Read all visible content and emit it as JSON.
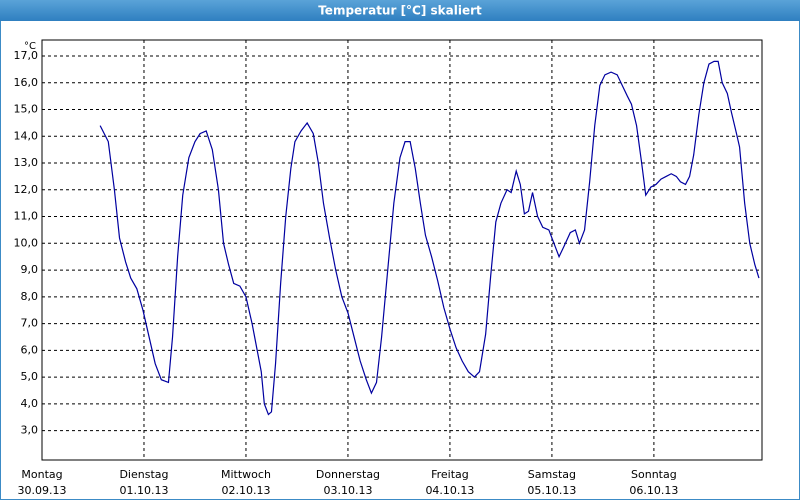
{
  "chart_data": {
    "type": "line",
    "title": "Temperatur [°C] skaliert",
    "y_unit": "°C",
    "x": [
      0.57,
      0.65,
      0.71,
      0.76,
      0.82,
      0.87,
      0.93,
      0.99,
      1.05,
      1.11,
      1.17,
      1.24,
      1.28,
      1.33,
      1.38,
      1.44,
      1.5,
      1.55,
      1.61,
      1.67,
      1.73,
      1.78,
      1.83,
      1.88,
      1.94,
      2.0,
      2.06,
      2.12,
      2.15,
      2.18,
      2.22,
      2.25,
      2.29,
      2.34,
      2.39,
      2.44,
      2.48,
      2.54,
      2.6,
      2.66,
      2.71,
      2.76,
      2.82,
      2.88,
      2.94,
      3.0,
      3.06,
      3.12,
      3.18,
      3.23,
      3.28,
      3.33,
      3.39,
      3.45,
      3.51,
      3.56,
      3.61,
      3.66,
      3.71,
      3.76,
      3.82,
      3.88,
      3.94,
      4.0,
      4.06,
      4.12,
      4.18,
      4.24,
      4.29,
      4.35,
      4.4,
      4.45,
      4.5,
      4.56,
      4.6,
      4.65,
      4.69,
      4.73,
      4.77,
      4.81,
      4.86,
      4.91,
      4.97,
      5.02,
      5.07,
      5.12,
      5.18,
      5.23,
      5.27,
      5.32,
      5.37,
      5.42,
      5.47,
      5.52,
      5.58,
      5.64,
      5.69,
      5.74,
      5.78,
      5.83,
      5.88,
      5.92,
      5.97,
      6.02,
      6.07,
      6.12,
      6.17,
      6.22,
      6.26,
      6.31,
      6.35,
      6.39,
      6.44,
      6.49,
      6.54,
      6.59,
      6.63,
      6.67,
      6.72,
      6.76,
      6.81,
      6.84,
      6.89,
      6.94,
      6.99,
      7.03
    ],
    "series": [
      {
        "name": "Temperatur",
        "color": "#0000a0",
        "values": [
          14.4,
          13.8,
          12.0,
          10.2,
          9.3,
          8.7,
          8.3,
          7.5,
          6.5,
          5.5,
          4.9,
          4.8,
          6.5,
          9.5,
          11.8,
          13.2,
          13.8,
          14.1,
          14.2,
          13.5,
          12.0,
          10.0,
          9.2,
          8.5,
          8.4,
          8.0,
          7.0,
          5.8,
          5.2,
          4.0,
          3.6,
          3.7,
          5.5,
          8.5,
          11.0,
          12.8,
          13.8,
          14.2,
          14.5,
          14.1,
          13.0,
          11.5,
          10.2,
          9.0,
          8.0,
          7.4,
          6.5,
          5.6,
          4.9,
          4.4,
          4.8,
          6.5,
          9.0,
          11.5,
          13.2,
          13.8,
          13.8,
          12.8,
          11.5,
          10.3,
          9.5,
          8.6,
          7.6,
          6.8,
          6.1,
          5.6,
          5.2,
          5.0,
          5.2,
          6.6,
          8.8,
          10.8,
          11.5,
          12.0,
          11.9,
          12.7,
          12.2,
          11.1,
          11.2,
          11.9,
          11.0,
          10.6,
          10.5,
          10.0,
          9.5,
          9.9,
          10.4,
          10.5,
          10.0,
          10.5,
          12.3,
          14.4,
          15.9,
          16.3,
          16.4,
          16.3,
          15.9,
          15.5,
          15.2,
          14.4,
          13.0,
          11.8,
          12.1,
          12.2,
          12.4,
          12.5,
          12.6,
          12.5,
          12.3,
          12.2,
          12.5,
          13.3,
          14.8,
          16.0,
          16.7,
          16.8,
          16.8,
          16.0,
          15.6,
          14.9,
          14.1,
          13.6,
          11.5,
          10.0,
          9.2,
          8.7
        ]
      }
    ],
    "xlim": [
      0,
      7.06
    ],
    "xticks": [
      {
        "value": 0,
        "label": "Montag"
      },
      {
        "value": 1,
        "label": "Dienstag"
      },
      {
        "value": 2,
        "label": "Mittwoch"
      },
      {
        "value": 3,
        "label": "Donnerstag"
      },
      {
        "value": 4,
        "label": "Freitag"
      },
      {
        "value": 5,
        "label": "Samstag"
      },
      {
        "value": 6,
        "label": "Sonntag"
      }
    ],
    "xtick_dates": [
      "30.09.13",
      "01.10.13",
      "02.10.13",
      "03.10.13",
      "04.10.13",
      "05.10.13",
      "06.10.13"
    ],
    "ylim": [
      1.9,
      17.6
    ],
    "yticks": [
      {
        "value": 3,
        "label": "3,0"
      },
      {
        "value": 4,
        "label": "4,0"
      },
      {
        "value": 5,
        "label": "5,0"
      },
      {
        "value": 6,
        "label": "6,0"
      },
      {
        "value": 7,
        "label": "7,0"
      },
      {
        "value": 8,
        "label": "8,0"
      },
      {
        "value": 9,
        "label": "9,0"
      },
      {
        "value": 10,
        "label": "10,0"
      },
      {
        "value": 11,
        "label": "11,0"
      },
      {
        "value": 12,
        "label": "12,0"
      },
      {
        "value": 13,
        "label": "13,0"
      },
      {
        "value": 14,
        "label": "14,0"
      },
      {
        "value": 15,
        "label": "15,0"
      },
      {
        "value": 16,
        "label": "16,0"
      },
      {
        "value": 17,
        "label": "17,0"
      }
    ],
    "grid": true
  }
}
